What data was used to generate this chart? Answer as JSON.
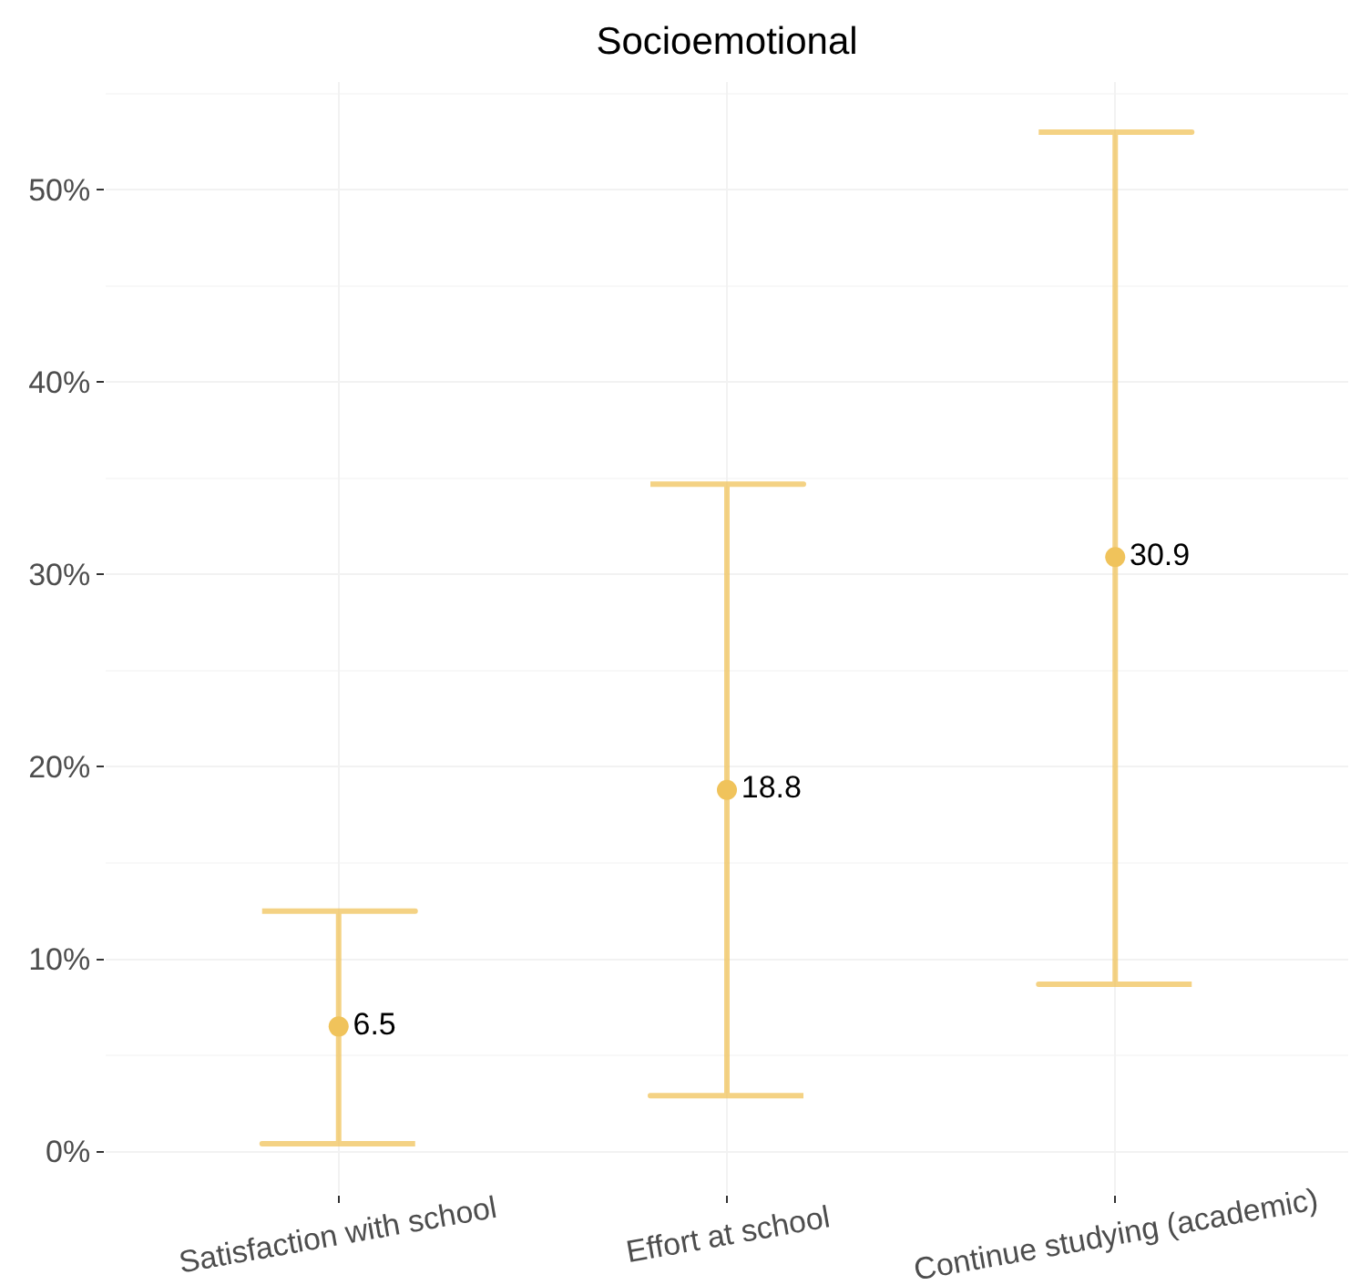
{
  "chart_data": {
    "type": "scatter",
    "title": "Socioemotional",
    "categories": [
      "Satisfaction with school",
      "Effort at school",
      "Continue studying (academic)"
    ],
    "series": [
      {
        "color": "#f0c35b",
        "values": [
          6.5,
          18.8,
          30.9
        ],
        "errors": [
          [
            0.4,
            12.5
          ],
          [
            2.9,
            34.7
          ],
          [
            8.7,
            53.0
          ]
        ]
      }
    ],
    "ylim": [
      -2.2,
      55.6
    ],
    "yticks": [
      {
        "value": 0,
        "label": "0%"
      },
      {
        "value": 10,
        "label": "10%"
      },
      {
        "value": 20,
        "label": "20%"
      },
      {
        "value": 30,
        "label": "30%"
      },
      {
        "value": 40,
        "label": "40%"
      },
      {
        "value": 50,
        "label": "50%"
      }
    ],
    "grid": true,
    "marker": "circle",
    "data_labels": true
  }
}
